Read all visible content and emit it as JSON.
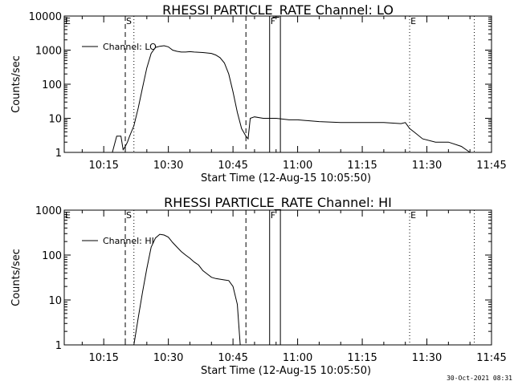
{
  "stamp": "30-Oct-2021 08:31",
  "chart_data": [
    {
      "type": "line",
      "title": "RHESSI PARTICLE_RATE Channel: LO",
      "xlabel": "Start Time (12-Aug-15 10:05:50)",
      "ylabel": "Counts/sec",
      "y_scale": "log",
      "xlim": [
        "10:05:50",
        "11:45:00"
      ],
      "ylim": [
        1,
        10000
      ],
      "x_ticks": [
        "10:15",
        "10:30",
        "10:45",
        "11:00",
        "11:15",
        "11:30",
        "11:45"
      ],
      "y_ticks": [
        "1",
        "10",
        "100",
        "1000",
        "10000"
      ],
      "legend": {
        "label": "Channel: LO",
        "position": "top-left"
      },
      "markers": [
        {
          "label": "E",
          "time": "10:05:50",
          "style": "dotted"
        },
        {
          "label": "S",
          "time": "10:20:00",
          "style": "dashed"
        },
        {
          "label": "",
          "time": "10:22:00",
          "style": "dotted"
        },
        {
          "label": "",
          "time": "10:48:00",
          "style": "dashed"
        },
        {
          "label": "F",
          "time": "10:53:30",
          "style": "solid"
        },
        {
          "label": "",
          "time": "10:56:00",
          "style": "solid"
        },
        {
          "label": "E",
          "time": "11:26:00",
          "style": "dotted"
        },
        {
          "label": "",
          "time": "11:41:00",
          "style": "dotted"
        }
      ],
      "series": [
        {
          "name": "Channel: LO",
          "x": [
            "10:07:00",
            "10:10:00",
            "10:13:00",
            "10:15:00",
            "10:17:00",
            "10:18:00",
            "10:19:00",
            "10:19:30",
            "10:20:00",
            "10:20:30",
            "10:21:00",
            "10:22:00",
            "10:23:00",
            "10:24:00",
            "10:25:00",
            "10:26:00",
            "10:27:00",
            "10:28:00",
            "10:29:00",
            "10:30:00",
            "10:31:00",
            "10:32:00",
            "10:33:00",
            "10:34:00",
            "10:35:00",
            "10:36:00",
            "10:38:00",
            "10:40:00",
            "10:41:00",
            "10:42:00",
            "10:43:00",
            "10:44:00",
            "10:45:00",
            "10:46:00",
            "10:47:00",
            "10:48:00",
            "10:48:30",
            "10:49:00",
            "10:50:00",
            "10:52:00",
            "10:55:00",
            "10:58:00",
            "11:00:00",
            "11:05:00",
            "11:10:00",
            "11:15:00",
            "11:20:00",
            "11:24:00",
            "11:25:00",
            "11:26:00",
            "11:27:00",
            "11:29:00",
            "11:32:00",
            "11:35:00",
            "11:38:00",
            "11:40:00"
          ],
          "values": [
            1,
            1,
            1,
            1,
            1,
            3,
            3,
            1.2,
            1.5,
            2,
            3,
            6,
            20,
            80,
            300,
            800,
            1200,
            1300,
            1350,
            1250,
            1000,
            920,
            880,
            880,
            900,
            880,
            850,
            800,
            720,
            600,
            420,
            200,
            60,
            15,
            5,
            3,
            2.5,
            10,
            11,
            10,
            10,
            9,
            9,
            8,
            7.5,
            7.5,
            7.5,
            7,
            7.5,
            5,
            4,
            2.5,
            2,
            2,
            1.5,
            1
          ]
        }
      ]
    },
    {
      "type": "line",
      "title": "RHESSI PARTICLE_RATE Channel: HI",
      "xlabel": "Start Time (12-Aug-15 10:05:50)",
      "ylabel": "Counts/sec",
      "y_scale": "log",
      "xlim": [
        "10:05:50",
        "11:45:00"
      ],
      "ylim": [
        1,
        1000
      ],
      "x_ticks": [
        "10:15",
        "10:30",
        "10:45",
        "11:00",
        "11:15",
        "11:30",
        "11:45"
      ],
      "y_ticks": [
        "1",
        "10",
        "100",
        "1000"
      ],
      "legend": {
        "label": "Channel: HI",
        "position": "top-left"
      },
      "markers": [
        {
          "label": "E",
          "time": "10:05:50",
          "style": "dotted"
        },
        {
          "label": "S",
          "time": "10:20:00",
          "style": "dashed"
        },
        {
          "label": "",
          "time": "10:22:00",
          "style": "dotted"
        },
        {
          "label": "",
          "time": "10:48:00",
          "style": "dashed"
        },
        {
          "label": "F",
          "time": "10:53:30",
          "style": "solid"
        },
        {
          "label": "",
          "time": "10:56:00",
          "style": "solid"
        },
        {
          "label": "E",
          "time": "11:26:00",
          "style": "dotted"
        },
        {
          "label": "",
          "time": "11:41:00",
          "style": "dotted"
        }
      ],
      "series": [
        {
          "name": "Channel: HI",
          "x": [
            "10:22:00",
            "10:23:00",
            "10:24:00",
            "10:25:00",
            "10:26:00",
            "10:27:00",
            "10:28:00",
            "10:29:00",
            "10:30:00",
            "10:31:00",
            "10:32:00",
            "10:33:00",
            "10:34:00",
            "10:35:00",
            "10:36:00",
            "10:37:00",
            "10:38:00",
            "10:39:00",
            "10:40:00",
            "10:41:00",
            "10:42:00",
            "10:43:00",
            "10:44:00",
            "10:45:00",
            "10:46:00",
            "10:46:40"
          ],
          "values": [
            1,
            4,
            15,
            50,
            150,
            240,
            290,
            280,
            250,
            190,
            150,
            120,
            100,
            85,
            70,
            60,
            45,
            38,
            32,
            30,
            29,
            28,
            27,
            20,
            8,
            1
          ]
        }
      ]
    }
  ]
}
